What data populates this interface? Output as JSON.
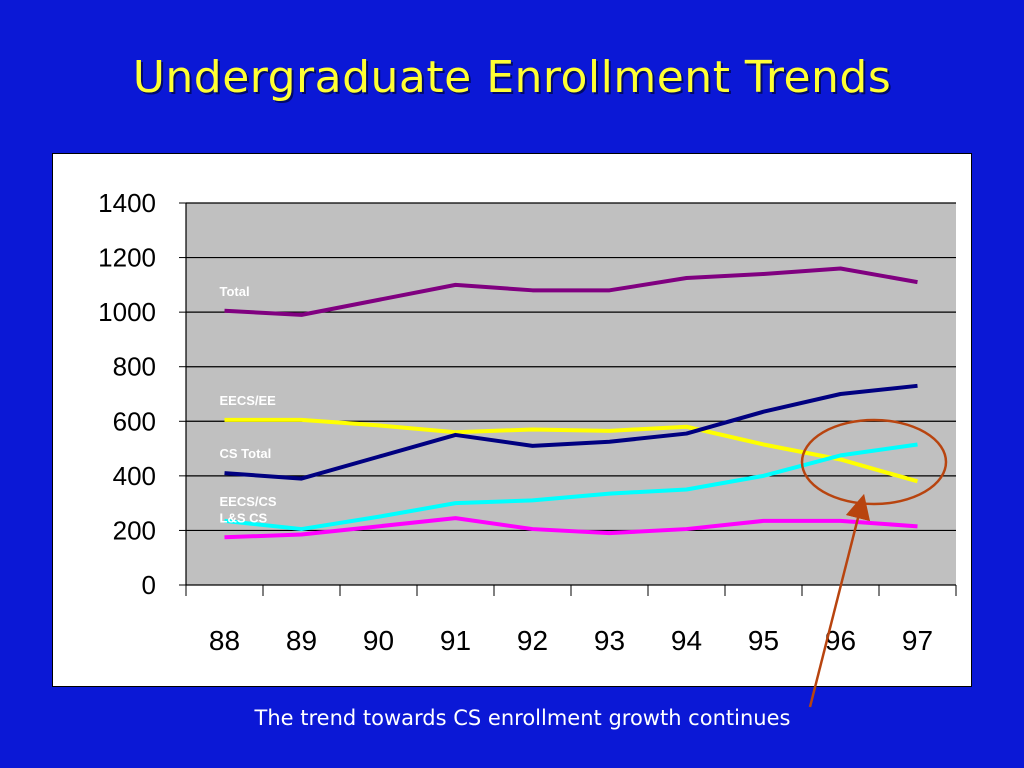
{
  "slide": {
    "title": "Undergraduate Enrollment Trends",
    "caption": "The trend towards CS enrollment growth continues"
  },
  "colors": {
    "background": "#0b18d6",
    "title": "#ffff33",
    "plot_area": "#c0c0c0",
    "highlight": "#b8440f"
  },
  "chart_data": {
    "type": "line",
    "categories": [
      "88",
      "89",
      "90",
      "91",
      "92",
      "93",
      "94",
      "95",
      "96",
      "97"
    ],
    "ylim": [
      0,
      1400
    ],
    "yticks": [
      0,
      200,
      400,
      600,
      800,
      1000,
      1200,
      1400
    ],
    "grid": true,
    "legend": "inline labels at left",
    "series": [
      {
        "name": "Total",
        "color": "#800080",
        "values": [
          1005,
          990,
          1045,
          1100,
          1080,
          1080,
          1125,
          1140,
          1160,
          1110
        ]
      },
      {
        "name": "EECS/EE",
        "color": "#ffff00",
        "values": [
          605,
          605,
          585,
          560,
          570,
          565,
          580,
          515,
          460,
          380
        ]
      },
      {
        "name": "CS Total",
        "color": "#000080",
        "values": [
          410,
          390,
          470,
          550,
          510,
          525,
          555,
          635,
          700,
          730
        ]
      },
      {
        "name": "EECS/CS",
        "color": "#00ffff",
        "values": [
          235,
          205,
          250,
          300,
          310,
          335,
          350,
          400,
          475,
          515
        ]
      },
      {
        "name": "L&S CS",
        "color": "#ff00ff",
        "values": [
          175,
          185,
          215,
          245,
          205,
          190,
          205,
          235,
          235,
          215
        ]
      }
    ]
  }
}
